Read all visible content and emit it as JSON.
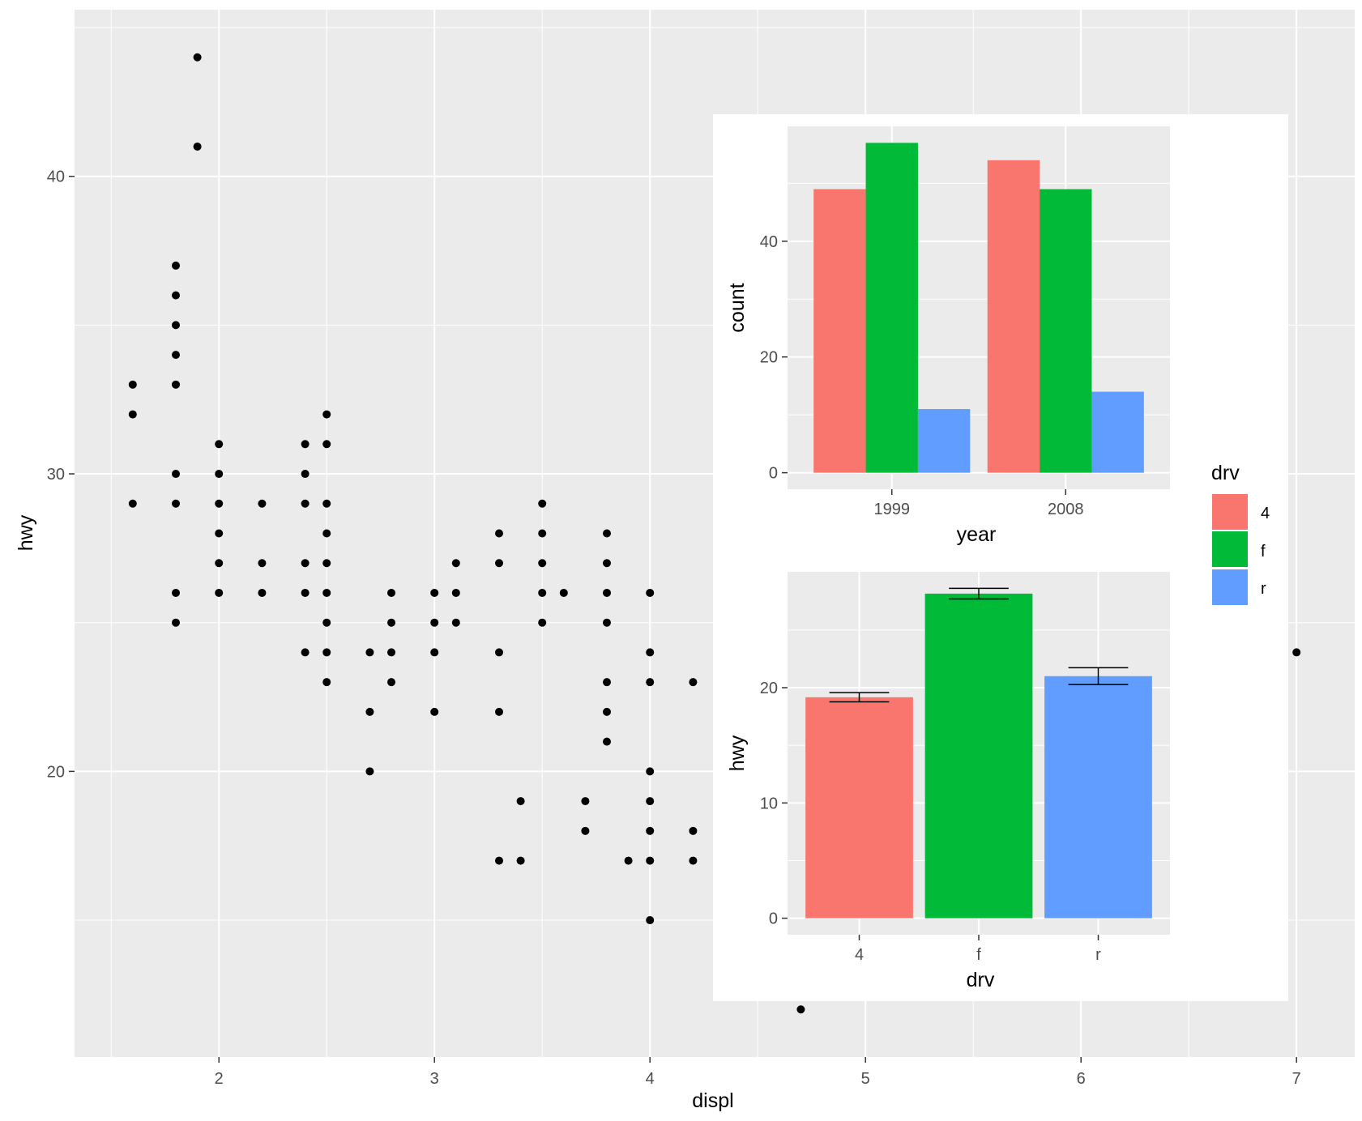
{
  "chart_data": [
    {
      "id": "main",
      "type": "scatter",
      "title": "",
      "xlabel": "displ",
      "ylabel": "hwy",
      "xlim": [
        1.33,
        7.27
      ],
      "ylim": [
        10.4,
        45.6
      ],
      "x_ticks": [
        2,
        3,
        4,
        5,
        6,
        7
      ],
      "x_tick_labels": [
        "2",
        "3",
        "4",
        "5",
        "6",
        "7"
      ],
      "y_ticks": [
        20,
        30,
        40
      ],
      "y_tick_labels": [
        "20",
        "30",
        "40"
      ],
      "grid": true,
      "point_color": "#000000",
      "points": [
        [
          1.6,
          29
        ],
        [
          1.6,
          32
        ],
        [
          1.6,
          33
        ],
        [
          1.8,
          25
        ],
        [
          1.8,
          26
        ],
        [
          1.8,
          29
        ],
        [
          1.8,
          30
        ],
        [
          1.8,
          33
        ],
        [
          1.8,
          34
        ],
        [
          1.8,
          35
        ],
        [
          1.8,
          36
        ],
        [
          1.8,
          37
        ],
        [
          1.9,
          41
        ],
        [
          1.9,
          44
        ],
        [
          2.0,
          26
        ],
        [
          2.0,
          27
        ],
        [
          2.0,
          28
        ],
        [
          2.0,
          29
        ],
        [
          2.0,
          30
        ],
        [
          2.0,
          31
        ],
        [
          2.2,
          26
        ],
        [
          2.2,
          27
        ],
        [
          2.2,
          29
        ],
        [
          2.4,
          24
        ],
        [
          2.4,
          26
        ],
        [
          2.4,
          27
        ],
        [
          2.4,
          29
        ],
        [
          2.4,
          30
        ],
        [
          2.4,
          31
        ],
        [
          2.5,
          23
        ],
        [
          2.5,
          24
        ],
        [
          2.5,
          25
        ],
        [
          2.5,
          26
        ],
        [
          2.5,
          27
        ],
        [
          2.5,
          28
        ],
        [
          2.5,
          29
        ],
        [
          2.5,
          31
        ],
        [
          2.5,
          32
        ],
        [
          2.7,
          20
        ],
        [
          2.7,
          22
        ],
        [
          2.7,
          24
        ],
        [
          2.8,
          23
        ],
        [
          2.8,
          24
        ],
        [
          2.8,
          25
        ],
        [
          2.8,
          26
        ],
        [
          3.0,
          22
        ],
        [
          3.0,
          24
        ],
        [
          3.0,
          25
        ],
        [
          3.0,
          26
        ],
        [
          3.1,
          25
        ],
        [
          3.1,
          26
        ],
        [
          3.1,
          27
        ],
        [
          3.3,
          17
        ],
        [
          3.3,
          22
        ],
        [
          3.3,
          24
        ],
        [
          3.3,
          27
        ],
        [
          3.3,
          28
        ],
        [
          3.4,
          17
        ],
        [
          3.4,
          19
        ],
        [
          3.5,
          25
        ],
        [
          3.5,
          26
        ],
        [
          3.5,
          27
        ],
        [
          3.5,
          28
        ],
        [
          3.5,
          29
        ],
        [
          3.6,
          26
        ],
        [
          3.7,
          18
        ],
        [
          3.7,
          19
        ],
        [
          3.8,
          21
        ],
        [
          3.8,
          22
        ],
        [
          3.8,
          23
        ],
        [
          3.8,
          25
        ],
        [
          3.8,
          26
        ],
        [
          3.8,
          27
        ],
        [
          3.8,
          28
        ],
        [
          3.9,
          17
        ],
        [
          4.0,
          15
        ],
        [
          4.0,
          17
        ],
        [
          4.0,
          18
        ],
        [
          4.0,
          19
        ],
        [
          4.0,
          20
        ],
        [
          4.0,
          23
        ],
        [
          4.0,
          24
        ],
        [
          4.0,
          26
        ],
        [
          4.2,
          17
        ],
        [
          4.2,
          18
        ],
        [
          4.2,
          23
        ],
        [
          4.7,
          12
        ],
        [
          7.0,
          24
        ]
      ]
    },
    {
      "id": "inset-year",
      "type": "bar",
      "title": "",
      "xlabel": "year",
      "ylabel": "count",
      "categories": [
        "1999",
        "2008"
      ],
      "series": [
        {
          "name": "4",
          "color": "#F8766D",
          "values": [
            49,
            54
          ]
        },
        {
          "name": "f",
          "color": "#00BA38",
          "values": [
            57,
            49
          ]
        },
        {
          "name": "r",
          "color": "#619CFF",
          "values": [
            11,
            14
          ]
        }
      ],
      "ylim": [
        -2.85,
        59.85
      ],
      "y_ticks": [
        0,
        20,
        40
      ],
      "y_tick_labels": [
        "0",
        "20",
        "40"
      ],
      "grid": true
    },
    {
      "id": "inset-drv",
      "type": "bar",
      "title": "",
      "xlabel": "drv",
      "ylabel": "hwy",
      "categories": [
        "4",
        "f",
        "r"
      ],
      "values": [
        19.17,
        28.16,
        21.0
      ],
      "colors": [
        "#F8766D",
        "#00BA38",
        "#619CFF"
      ],
      "error_bars": [
        [
          18.77,
          19.57
        ],
        [
          27.7,
          28.62
        ],
        [
          20.27,
          21.73
        ]
      ],
      "ylim": [
        -1.43,
        30.05
      ],
      "y_ticks": [
        0,
        10,
        20
      ],
      "y_tick_labels": [
        "0",
        "10",
        "20"
      ],
      "grid": true
    }
  ],
  "legend": {
    "title": "drv",
    "entries": [
      {
        "label": "4",
        "color": "#F8766D"
      },
      {
        "label": "f",
        "color": "#00BA38"
      },
      {
        "label": "r",
        "color": "#619CFF"
      }
    ]
  },
  "colors": {
    "panel_bg": "#EBEBEB",
    "grid_major": "#FFFFFF",
    "inset_bg": "#FFFFFF"
  }
}
